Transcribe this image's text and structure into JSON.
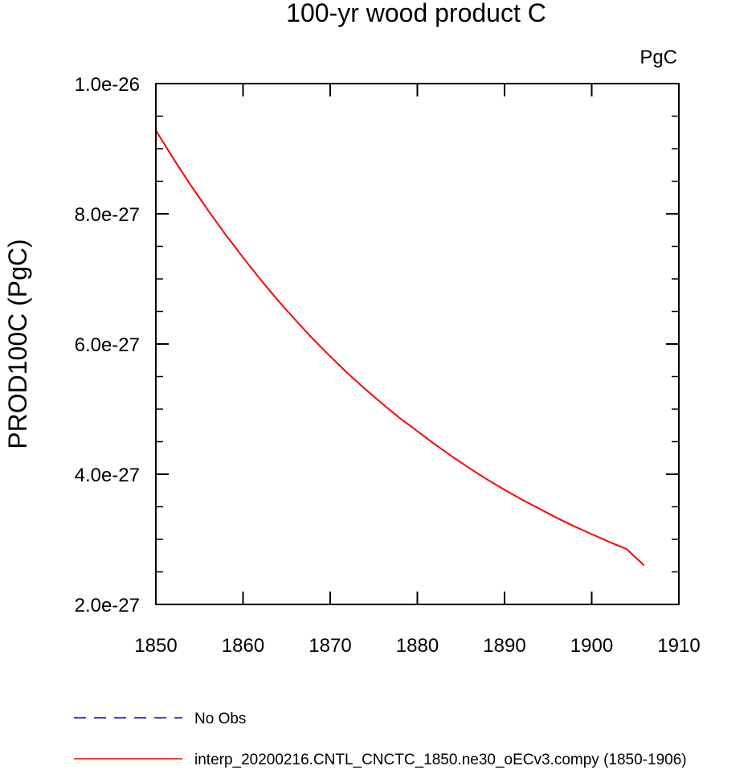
{
  "chart_data": {
    "type": "line",
    "title": "100-yr wood product C",
    "units_label": "PgC",
    "xlabel": "",
    "ylabel": "PROD100C  (PgC)",
    "xlim": [
      1850,
      1910
    ],
    "ylim": [
      2e-27,
      1e-26
    ],
    "x_ticks": [
      1850,
      1860,
      1870,
      1880,
      1890,
      1900,
      1910
    ],
    "x_tick_labels": [
      "1850",
      "1860",
      "1870",
      "1880",
      "1890",
      "1900",
      "1910"
    ],
    "y_ticks": [
      2e-27,
      4e-27,
      6e-27,
      8e-27,
      1e-26
    ],
    "y_tick_labels": [
      "2.0e-27",
      "4.0e-27",
      "6.0e-27",
      "8.0e-27",
      "1.0e-26"
    ],
    "grid": false,
    "legend_position": "bottom",
    "series": [
      {
        "name": "No Obs",
        "color": "#0000cc",
        "dash": "dashed",
        "x": [],
        "y": []
      },
      {
        "name": "interp_20200216.CNTL_CNCTC_1850.ne30_oECv3.compy (1850-1906)",
        "color": "#ff0000",
        "dash": "solid",
        "x": [
          1850,
          1852,
          1854,
          1856,
          1858,
          1860,
          1862,
          1864,
          1866,
          1868,
          1870,
          1872,
          1874,
          1876,
          1878,
          1880,
          1882,
          1884,
          1886,
          1888,
          1890,
          1892,
          1894,
          1896,
          1898,
          1900,
          1902,
          1904,
          1906
        ],
        "y": [
          9.28e-27,
          8.85e-27,
          8.44e-27,
          8.05e-27,
          7.68e-27,
          7.33e-27,
          6.99e-27,
          6.67e-27,
          6.37e-27,
          6.08e-27,
          5.81e-27,
          5.55e-27,
          5.31e-27,
          5.08e-27,
          4.86e-27,
          4.66e-27,
          4.46e-27,
          4.27e-27,
          4.09e-27,
          3.92e-27,
          3.76e-27,
          3.61e-27,
          3.47e-27,
          3.33e-27,
          3.2e-27,
          3.08e-27,
          2.96e-27,
          2.85e-27,
          2.6e-27
        ]
      }
    ]
  }
}
